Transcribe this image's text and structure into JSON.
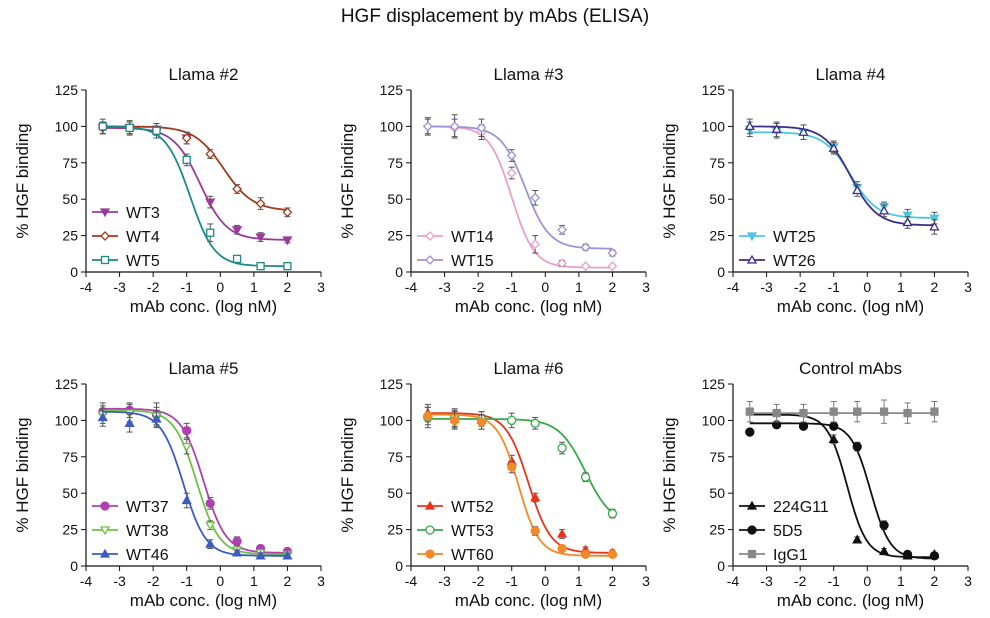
{
  "figure": {
    "title": "HGF displacement by mAbs (ELISA)"
  },
  "chart_data": [
    {
      "type": "line",
      "title": "Llama #2",
      "xlabel": "mAb conc. (log nM)",
      "ylabel": "% HGF binding",
      "xlim": [
        -4,
        3
      ],
      "ylim": [
        0,
        125
      ],
      "xticks": [
        -4,
        -3,
        -2,
        -1,
        0,
        1,
        2,
        3
      ],
      "yticks": [
        0,
        25,
        50,
        75,
        100,
        125
      ],
      "grid": false,
      "legend": "bottom-left",
      "series": [
        {
          "name": "WT3",
          "color": "#9b3a9b",
          "marker": "tri-down-filled",
          "top": 99,
          "bottom": 22,
          "ec50": -0.6,
          "hill": 1.1,
          "x": [
            -3.5,
            -2.7,
            -1.9,
            -1.0,
            -0.3,
            0.5,
            1.2,
            2.0
          ],
          "y": [
            99,
            99,
            98,
            92,
            48,
            29,
            24,
            22
          ],
          "err": [
            4,
            4,
            4,
            4,
            4,
            3,
            3,
            2
          ]
        },
        {
          "name": "WT4",
          "color": "#a33a1a",
          "marker": "diamond-open",
          "top": 100,
          "bottom": 42,
          "ec50": 0.1,
          "hill": 1.0,
          "x": [
            -3.5,
            -2.7,
            -1.9,
            -1.0,
            -0.3,
            0.5,
            1.2,
            2.0
          ],
          "y": [
            99,
            99,
            98,
            92,
            81,
            57,
            47,
            41
          ],
          "err": [
            4,
            4,
            4,
            4,
            3,
            3,
            4,
            3
          ]
        },
        {
          "name": "WT5",
          "color": "#1c8a8a",
          "marker": "square-open",
          "top": 100,
          "bottom": 4,
          "ec50": -0.9,
          "hill": 1.2,
          "x": [
            -3.5,
            -2.7,
            -1.9,
            -1.0,
            -0.3,
            0.5,
            1.2,
            2.0
          ],
          "y": [
            100,
            99,
            97,
            77,
            27,
            9,
            4,
            4
          ],
          "err": [
            5,
            5,
            5,
            4,
            6,
            2,
            1,
            1
          ]
        }
      ]
    },
    {
      "type": "line",
      "title": "Llama #3",
      "xlabel": "mAb conc. (log nM)",
      "ylabel": "% HGF binding",
      "xlim": [
        -4,
        3
      ],
      "ylim": [
        0,
        125
      ],
      "xticks": [
        -4,
        -3,
        -2,
        -1,
        0,
        1,
        2,
        3
      ],
      "yticks": [
        0,
        25,
        50,
        75,
        100,
        125
      ],
      "grid": false,
      "legend": "bottom-left",
      "series": [
        {
          "name": "WT14",
          "color": "#e8a0c8",
          "marker": "diamond-open",
          "top": 100,
          "bottom": 3,
          "ec50": -1.0,
          "hill": 1.3,
          "x": [
            -3.5,
            -2.7,
            -1.9,
            -1.0,
            -0.3,
            0.5,
            1.2,
            2.0
          ],
          "y": [
            100,
            99,
            96,
            68,
            19,
            6,
            4,
            4
          ],
          "err": [
            5,
            6,
            5,
            4,
            6,
            2,
            1,
            1
          ]
        },
        {
          "name": "WT15",
          "color": "#9a96d6",
          "marker": "diamond-open",
          "top": 100,
          "bottom": 16,
          "ec50": -0.6,
          "hill": 1.2,
          "x": [
            -3.5,
            -2.7,
            -1.9,
            -1.0,
            -0.3,
            0.5,
            1.2,
            2.0
          ],
          "y": [
            100,
            100,
            99,
            80,
            51,
            29,
            17,
            13
          ],
          "err": [
            6,
            8,
            6,
            4,
            5,
            3,
            2,
            2
          ]
        }
      ]
    },
    {
      "type": "line",
      "title": "Llama #4",
      "xlabel": "mAb conc. (log nM)",
      "ylabel": "% HGF binding",
      "xlim": [
        -4,
        3
      ],
      "ylim": [
        0,
        125
      ],
      "xticks": [
        -4,
        -3,
        -2,
        -1,
        0,
        1,
        2,
        3
      ],
      "yticks": [
        0,
        25,
        50,
        75,
        100,
        125
      ],
      "grid": false,
      "legend": "bottom-left",
      "series": [
        {
          "name": "WT25",
          "color": "#4fc6e0",
          "marker": "tri-down-filled",
          "top": 96,
          "bottom": 37,
          "ec50": -0.5,
          "hill": 1.1,
          "x": [
            -3.5,
            -2.7,
            -1.9,
            -1.0,
            -0.3,
            0.5,
            1.2,
            2.0
          ],
          "y": [
            98,
            97,
            96,
            86,
            58,
            45,
            39,
            37
          ],
          "err": [
            5,
            5,
            5,
            4,
            4,
            3,
            4,
            4
          ]
        },
        {
          "name": "WT26",
          "color": "#3a2e8a",
          "marker": "tri-up-open",
          "top": 100,
          "bottom": 32,
          "ec50": -0.5,
          "hill": 1.1,
          "x": [
            -3.5,
            -2.7,
            -1.9,
            -1.0,
            -0.3,
            0.5,
            1.2,
            2.0
          ],
          "y": [
            100,
            98,
            96,
            85,
            56,
            42,
            34,
            31
          ],
          "err": [
            5,
            5,
            5,
            4,
            4,
            4,
            4,
            5
          ]
        }
      ]
    },
    {
      "type": "line",
      "title": "Llama #5",
      "xlabel": "mAb conc. (log nM)",
      "ylabel": "% HGF binding",
      "xlim": [
        -4,
        3
      ],
      "ylim": [
        0,
        125
      ],
      "xticks": [
        -4,
        -3,
        -2,
        -1,
        0,
        1,
        2,
        3
      ],
      "yticks": [
        0,
        25,
        50,
        75,
        100,
        125
      ],
      "grid": false,
      "legend": "bottom-left",
      "series": [
        {
          "name": "WT37",
          "color": "#b040b0",
          "marker": "circle-filled",
          "top": 108,
          "bottom": 9,
          "ec50": -0.5,
          "hill": 1.3,
          "x": [
            -3.5,
            -2.7,
            -1.9,
            -1.0,
            -0.3,
            0.5,
            1.2,
            2.0
          ],
          "y": [
            106,
            107,
            104,
            93,
            43,
            17,
            12,
            10
          ],
          "err": [
            6,
            5,
            8,
            5,
            4,
            3,
            2,
            2
          ]
        },
        {
          "name": "WT38",
          "color": "#6fc048",
          "marker": "tri-down-open",
          "top": 107,
          "bottom": 8,
          "ec50": -0.7,
          "hill": 1.3,
          "x": [
            -3.5,
            -2.7,
            -1.9,
            -1.0,
            -0.3,
            0.5,
            1.2,
            2.0
          ],
          "y": [
            104,
            105,
            103,
            82,
            28,
            11,
            9,
            8
          ],
          "err": [
            6,
            6,
            6,
            5,
            3,
            2,
            2,
            2
          ]
        },
        {
          "name": "WT46",
          "color": "#3c5cc0",
          "marker": "tri-up-filled",
          "top": 106,
          "bottom": 7,
          "ec50": -1.1,
          "hill": 1.3,
          "x": [
            -3.5,
            -2.7,
            -1.9,
            -1.0,
            -0.3,
            0.5,
            1.2,
            2.0
          ],
          "y": [
            102,
            98,
            101,
            45,
            15,
            9,
            7,
            7
          ],
          "err": [
            6,
            6,
            6,
            5,
            3,
            2,
            2,
            2
          ]
        }
      ]
    },
    {
      "type": "line",
      "title": "Llama #6",
      "xlabel": "mAb conc. (log nM)",
      "ylabel": "% HGF binding",
      "xlim": [
        -4,
        3
      ],
      "ylim": [
        0,
        125
      ],
      "xticks": [
        -4,
        -3,
        -2,
        -1,
        0,
        1,
        2,
        3
      ],
      "yticks": [
        0,
        25,
        50,
        75,
        100,
        125
      ],
      "grid": false,
      "legend": "bottom-left",
      "series": [
        {
          "name": "WT52",
          "color": "#e8341c",
          "marker": "tri-up-filled",
          "top": 105,
          "bottom": 9,
          "ec50": -0.5,
          "hill": 1.3,
          "x": [
            -3.5,
            -2.7,
            -1.9,
            -1.0,
            -0.3,
            0.5,
            1.2,
            2.0
          ],
          "y": [
            105,
            101,
            100,
            72,
            47,
            22,
            11,
            9
          ],
          "err": [
            6,
            6,
            6,
            4,
            3,
            3,
            2,
            2
          ]
        },
        {
          "name": "WT53",
          "color": "#3aa84a",
          "marker": "circle-open",
          "top": 101,
          "bottom": 28,
          "ec50": 1.2,
          "hill": 1.1,
          "x": [
            -3.5,
            -2.7,
            -1.9,
            -1.0,
            -0.3,
            0.5,
            1.2,
            2.0
          ],
          "y": [
            102,
            102,
            101,
            100,
            98,
            81,
            61,
            36
          ],
          "err": [
            7,
            6,
            5,
            5,
            4,
            4,
            3,
            3
          ]
        },
        {
          "name": "WT60",
          "color": "#f08a2a",
          "marker": "circle-filled",
          "top": 104,
          "bottom": 7,
          "ec50": -0.8,
          "hill": 1.4,
          "x": [
            -3.5,
            -2.7,
            -1.9,
            -1.0,
            -0.3,
            0.5,
            1.2,
            2.0
          ],
          "y": [
            103,
            100,
            99,
            68,
            24,
            12,
            8,
            8
          ],
          "err": [
            6,
            6,
            5,
            4,
            3,
            2,
            2,
            2
          ]
        }
      ]
    },
    {
      "type": "line",
      "title": "Control mAbs",
      "xlabel": "mAb conc. (log nM)",
      "ylabel": "% HGF binding",
      "xlim": [
        -4,
        3
      ],
      "ylim": [
        0,
        125
      ],
      "xticks": [
        -4,
        -3,
        -2,
        -1,
        0,
        1,
        2,
        3
      ],
      "yticks": [
        0,
        25,
        50,
        75,
        100,
        125
      ],
      "grid": false,
      "legend": "bottom-left",
      "series": [
        {
          "name": "224G11",
          "color": "#111111",
          "marker": "tri-up-filled",
          "top": 104,
          "bottom": 6,
          "ec50": -0.6,
          "hill": 1.5,
          "x": [
            -1.0,
            -0.3,
            0.5,
            1.2,
            2.0
          ],
          "y": [
            87,
            18,
            10,
            7,
            8
          ],
          "err": [
            3,
            2,
            2,
            1,
            1
          ]
        },
        {
          "name": "5D5",
          "color": "#111111",
          "marker": "circle-filled",
          "top": 98,
          "bottom": 5,
          "ec50": 0.1,
          "hill": 1.5,
          "x": [
            -3.5,
            -2.7,
            -1.9,
            -1.0,
            -0.3,
            0.5,
            1.2,
            2.0
          ],
          "y": [
            92,
            97,
            96,
            96,
            82,
            28,
            8,
            7
          ],
          "err": [
            2,
            2,
            2,
            2,
            3,
            3,
            1,
            1
          ]
        },
        {
          "name": "IgG1",
          "color": "#888888",
          "marker": "square-filled",
          "top": 105,
          "bottom": 105,
          "ec50": 0,
          "hill": 1,
          "x": [
            -3.5,
            -2.7,
            -1.9,
            -1.0,
            -0.3,
            0.5,
            1.2,
            2.0
          ],
          "y": [
            106,
            105,
            105,
            106,
            106,
            106,
            105,
            106
          ],
          "err": [
            7,
            6,
            6,
            7,
            7,
            8,
            7,
            7
          ]
        }
      ]
    }
  ]
}
